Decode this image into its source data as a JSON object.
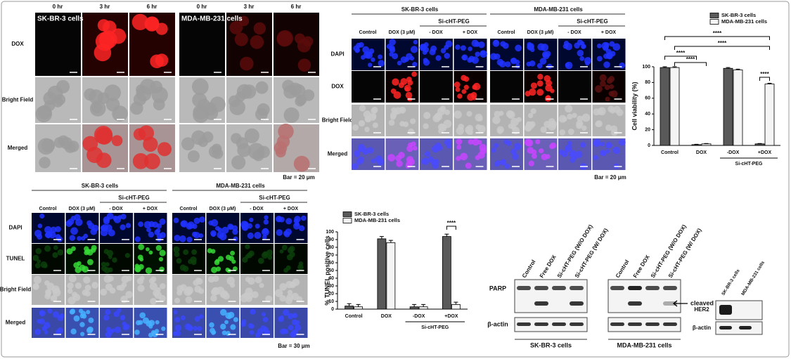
{
  "panel_a": {
    "groups": [
      {
        "title": "SK-BR-3 cells",
        "times": [
          "0 hr",
          "3 hr",
          "6 hr"
        ]
      },
      {
        "title": "MDA-MB-231 cells",
        "times": [
          "0 hr",
          "3 hr",
          "6 hr"
        ]
      }
    ],
    "rows": [
      "DOX",
      "Bright Field",
      "Merged"
    ],
    "scale_bar": "Bar = 20 μm"
  },
  "panel_b": {
    "groups": [
      {
        "title": "SK-BR-3 cells",
        "treatment": "Si-cHT-PEG",
        "columns": [
          "Control",
          "DOX (3 μM)",
          "- DOX",
          "+ DOX"
        ]
      },
      {
        "title": "MDA-MB-231 cells",
        "treatment": "Si-cHT-PEG",
        "columns": [
          "Control",
          "DOX (3 μM)",
          "- DOX",
          "+ DOX"
        ]
      }
    ],
    "rows": [
      "DAPI",
      "DOX",
      "Bright Field",
      "Merged"
    ],
    "scale_bar": "Bar = 20 μm"
  },
  "panel_d": {
    "groups": [
      {
        "title": "SK-BR-3 cells",
        "treatment": "Si-cHT-PEG",
        "columns": [
          "Control",
          "DOX (3 μM)",
          "- DOX",
          "+ DOX"
        ]
      },
      {
        "title": "MDA-MB-231 cells",
        "treatment": "Si-cHT-PEG",
        "columns": [
          "Control",
          "DOX (3 μM)",
          "- DOX",
          "+ DOX"
        ]
      }
    ],
    "rows": [
      "DAPI",
      "TUNEL",
      "Bright Field",
      "Merged"
    ],
    "scale_bar": "Bar = 30 μm"
  },
  "chart_data": [
    {
      "type": "bar",
      "y_label": "Cell viability (%)",
      "categories": [
        "Control",
        "DOX",
        "-DOX",
        "+DOX"
      ],
      "group_label": "Si-cHT-PEG",
      "series": [
        {
          "name": "SK-BR-3 cells",
          "color": "#595959",
          "values": [
            99,
            1,
            98,
            2
          ],
          "errors": [
            1,
            0.5,
            1,
            0.5
          ]
        },
        {
          "name": "MDA-MB-231 cells",
          "color": "#f4f4f4",
          "values": [
            99,
            2,
            96,
            78
          ],
          "errors": [
            1,
            0.5,
            1,
            1
          ]
        }
      ],
      "ylim": [
        0,
        100
      ],
      "yticks": [
        0,
        20,
        40,
        60,
        80,
        100
      ],
      "significance": [
        "****",
        "****",
        "****",
        "****",
        "****"
      ],
      "legend": "upper right"
    },
    {
      "type": "bar",
      "y_label": "% TUNEL positive cells",
      "categories": [
        "Control",
        "DOX",
        "-DOX",
        "+DOX"
      ],
      "group_label": "Si-cHT-PEG",
      "series": [
        {
          "name": "SK-BR-3 cells",
          "color": "#595959",
          "values": [
            4,
            91,
            3,
            94
          ],
          "errors": [
            3,
            3,
            3,
            3
          ]
        },
        {
          "name": "MDA-MB-231 cells",
          "color": "#f4f4f4",
          "values": [
            3,
            86,
            3,
            6
          ],
          "errors": [
            3,
            3,
            3,
            3
          ]
        }
      ],
      "ylim": [
        0,
        100
      ],
      "yticks": [
        0,
        10,
        20,
        30,
        40,
        50,
        60,
        70,
        80,
        90,
        100
      ],
      "significance": [
        "****"
      ],
      "legend": "upper left"
    }
  ],
  "western_blot": {
    "groups": [
      {
        "title": "SK-BR-3 cells",
        "lanes": [
          "Control",
          "Free DOX",
          "Si-cHT-PEG (W/O DOX)",
          "Si-cHT-PEG (W/ DOX)"
        ]
      },
      {
        "title": "MDA-MB-231 cells",
        "lanes": [
          "Control",
          "Free DOX",
          "Si-cHT-PEG (W/O DOX)",
          "Si-cHT-PEG (W/ DOX)"
        ]
      }
    ],
    "rows": [
      "PARP",
      "β-actin"
    ],
    "annotation": "cleaved"
  },
  "her2_blot": {
    "lanes": [
      "SK-BR-3 cells",
      "MDA-MB-231 cells"
    ],
    "rows": [
      "HER2",
      "β-actin"
    ]
  }
}
